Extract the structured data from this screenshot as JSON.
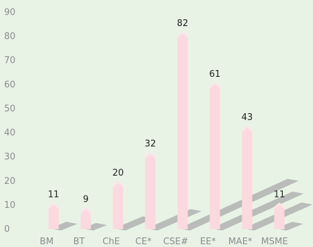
{
  "chart_data": {
    "type": "bar",
    "title": "",
    "xlabel": "",
    "ylabel": "",
    "categories": [
      "BM",
      "BT",
      "ChE",
      "CE*",
      "CSE#",
      "EE*",
      "MAE*",
      "MSME"
    ],
    "values": [
      11,
      9,
      20,
      32,
      82,
      61,
      43,
      11
    ],
    "ylim": [
      0,
      90
    ],
    "yticks": [
      0,
      10,
      20,
      30,
      40,
      50,
      60,
      70,
      80,
      90
    ],
    "grid": false,
    "legend": "none",
    "colors": {
      "background": "#e8f3e6",
      "bar": "#fcd9df",
      "bar_top": "#fde6ea",
      "shadow": "#b9bcb9",
      "tick_text": "#8c8c8c",
      "value_text": "#222222"
    }
  }
}
